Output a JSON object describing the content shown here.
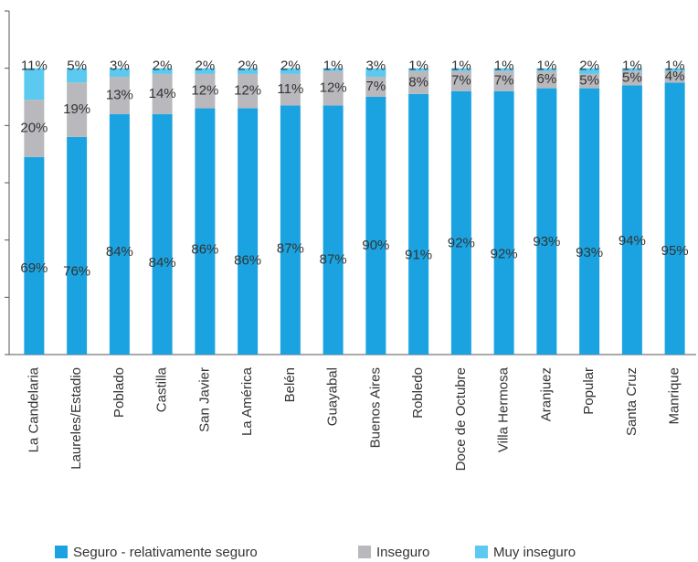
{
  "chart_data": {
    "type": "stacked-bar",
    "categories": [
      "La Candelaria",
      "Laureles/Estadio",
      "Poblado",
      "Castilla",
      "San Javier",
      "La América",
      "Belén",
      "Guayabal",
      "Buenos Aires",
      "Robledo",
      "Doce de Octubre",
      "Villa Hermosa",
      "Aranjuez",
      "Popular",
      "Santa Cruz",
      "Manrique"
    ],
    "series": [
      {
        "name": "Seguro - relativamente seguro",
        "color": "#1ba3e1",
        "values": [
          69,
          76,
          84,
          84,
          86,
          86,
          87,
          87,
          90,
          91,
          92,
          92,
          93,
          93,
          94,
          95
        ],
        "value_labels": [
          "69%",
          "76%",
          "84%",
          "84%",
          "86%",
          "86%",
          "87%",
          "87%",
          "90%",
          "91%",
          "92%",
          "92%",
          "93%",
          "93%",
          "94%",
          "95%"
        ]
      },
      {
        "name": "Inseguro",
        "color": "#b9b9bd",
        "values": [
          20,
          19,
          13,
          14,
          12,
          12,
          11,
          12,
          7,
          8,
          7,
          7,
          6,
          5,
          5,
          4
        ],
        "value_labels": [
          "20%",
          "19%",
          "13%",
          "14%",
          "12%",
          "12%",
          "11%",
          "12%",
          "7%",
          "8%",
          "7%",
          "7%",
          "6%",
          "5%",
          "5%",
          "4%"
        ]
      },
      {
        "name": "Muy inseguro",
        "color": "#5cc9f0",
        "values": [
          11,
          5,
          3,
          2,
          2,
          2,
          2,
          1,
          3,
          1,
          1,
          1,
          1,
          2,
          1,
          1
        ],
        "value_labels": [
          "11%",
          "5%",
          "3%",
          "2%",
          "2%",
          "2%",
          "2%",
          "1%",
          "3%",
          "1%",
          "1%",
          "1%",
          "1%",
          "2%",
          "1%",
          "1%"
        ]
      }
    ],
    "ylim": [
      0,
      120
    ],
    "yticks": [
      0,
      20,
      40,
      60,
      80,
      100,
      120
    ]
  }
}
